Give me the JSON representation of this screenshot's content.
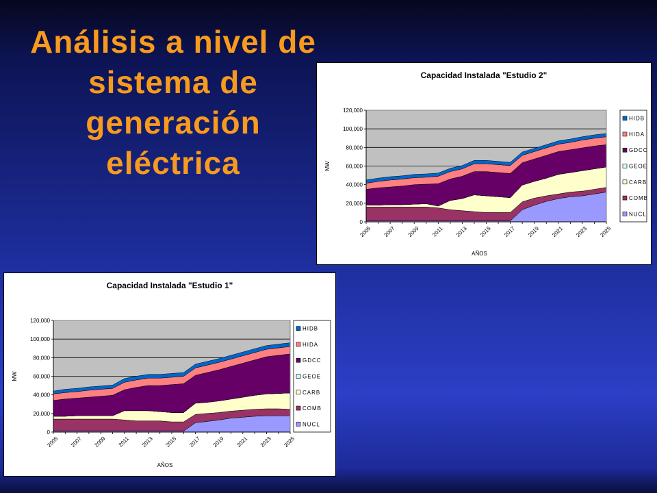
{
  "slide": {
    "title_lines": [
      "Análisis a nivel de",
      "sistema de",
      "generación",
      "eléctrica"
    ]
  },
  "colors": {
    "NUCL": "#9999ff",
    "COMB": "#993366",
    "CARB": "#ffffcc",
    "GEOE": "#ccffff",
    "GDCC": "#660066",
    "HIDA": "#ff8080",
    "HIDB": "#0066cc",
    "plot_bg": "#c0c0c0"
  },
  "chart_data": [
    {
      "id": "estudio2",
      "type": "area",
      "stacked": true,
      "title": "Capacidad Instalada \"Estudio 2\"",
      "xlabel": "AÑOS",
      "ylabel": "MW",
      "ylim": [
        0,
        120000
      ],
      "yticks": [
        "0",
        "20,000",
        "40,000",
        "60,000",
        "80,000",
        "100,000",
        "120,000"
      ],
      "xtick_labels": [
        "2005",
        "2007",
        "2009",
        "2011",
        "2013",
        "2015",
        "2017",
        "2019",
        "2021",
        "2023",
        "2025"
      ],
      "x": [
        2005,
        2006,
        2007,
        2008,
        2009,
        2010,
        2011,
        2012,
        2013,
        2014,
        2015,
        2016,
        2017,
        2018,
        2019,
        2020,
        2021,
        2022,
        2023,
        2024,
        2025
      ],
      "legend_position": "right",
      "legend": [
        "HIDB",
        "HIDA",
        "GDCC",
        "GEOE",
        "CARB",
        "COMB",
        "NUCL"
      ],
      "grid": true,
      "series": [
        {
          "name": "NUCL",
          "values": [
            1000,
            1000,
            1000,
            1000,
            1000,
            1000,
            1000,
            1000,
            1000,
            1000,
            1000,
            1000,
            1000,
            13000,
            18000,
            22000,
            25000,
            27000,
            28000,
            30000,
            32000
          ]
        },
        {
          "name": "COMB",
          "values": [
            15000,
            15000,
            15000,
            15000,
            15000,
            15000,
            14000,
            12000,
            11000,
            10000,
            9000,
            9000,
            9000,
            8500,
            7500,
            6000,
            5000,
            5000,
            5000,
            5000,
            5000
          ]
        },
        {
          "name": "CARB",
          "values": [
            2000,
            2000,
            2500,
            2500,
            3000,
            3500,
            2000,
            10000,
            13000,
            18000,
            18000,
            17000,
            16000,
            18000,
            18000,
            19000,
            21000,
            21000,
            22000,
            22000,
            22000
          ]
        },
        {
          "name": "GEOE",
          "values": [
            0,
            0,
            0,
            0,
            0,
            0,
            0,
            0,
            0,
            0,
            0,
            0,
            0,
            0,
            0,
            0,
            0,
            0,
            0,
            0,
            0
          ]
        },
        {
          "name": "GDCC",
          "values": [
            17000,
            18500,
            19000,
            20000,
            21000,
            21000,
            24000,
            23000,
            24000,
            25000,
            26000,
            26000,
            26000,
            24000,
            24000,
            24500,
            24500,
            24500,
            24500,
            24500,
            24000
          ]
        },
        {
          "name": "HIDA",
          "values": [
            6500,
            7000,
            7500,
            7500,
            7500,
            7500,
            8000,
            8000,
            8000,
            8500,
            8500,
            8500,
            8500,
            8000,
            8000,
            8000,
            8000,
            8000,
            8500,
            8500,
            8500
          ]
        },
        {
          "name": "HIDB",
          "values": [
            3500,
            3500,
            3500,
            3500,
            3500,
            3500,
            3500,
            3500,
            3500,
            3500,
            3500,
            3500,
            3500,
            3500,
            3500,
            3500,
            3500,
            3500,
            3500,
            3500,
            3500
          ]
        }
      ]
    },
    {
      "id": "estudio1",
      "type": "area",
      "stacked": true,
      "title": "Capacidad Instalada \"Estudio 1\"",
      "xlabel": "AÑOS",
      "ylabel": "MW",
      "ylim": [
        0,
        120000
      ],
      "yticks": [
        "0",
        "20,000",
        "40,000",
        "60,000",
        "80,000",
        "100,000",
        "120,000"
      ],
      "xtick_labels": [
        "2005",
        "2007",
        "2009",
        "2011",
        "2013",
        "2015",
        "2017",
        "2019",
        "2021",
        "2023",
        "2025"
      ],
      "x": [
        2005,
        2006,
        2007,
        2008,
        2009,
        2010,
        2011,
        2012,
        2013,
        2014,
        2015,
        2016,
        2017,
        2018,
        2019,
        2020,
        2021,
        2022,
        2023,
        2024,
        2025
      ],
      "legend_position": "right",
      "legend": [
        "HIDB",
        "HIDA",
        "GDCC",
        "GEOE",
        "CARB",
        "COMB",
        "NUCL"
      ],
      "grid": true,
      "series": [
        {
          "name": "NUCL",
          "values": [
            1000,
            1000,
            1000,
            1000,
            1000,
            1000,
            1000,
            1000,
            1000,
            1000,
            1000,
            1000,
            10000,
            11500,
            13000,
            15000,
            16000,
            17000,
            17500,
            17500,
            17500
          ]
        },
        {
          "name": "COMB",
          "values": [
            13000,
            13000,
            13000,
            13000,
            13000,
            13000,
            12000,
            11000,
            11000,
            11000,
            10000,
            10000,
            9000,
            8500,
            8000,
            7500,
            7500,
            7500,
            7500,
            7500,
            7000
          ]
        },
        {
          "name": "CARB",
          "values": [
            3000,
            3000,
            3500,
            3500,
            3500,
            3500,
            10000,
            11000,
            11000,
            10000,
            10000,
            10000,
            12000,
            12000,
            12500,
            13000,
            14000,
            15000,
            16000,
            16500,
            17500
          ]
        },
        {
          "name": "GEOE",
          "values": [
            0,
            0,
            0,
            0,
            0,
            0,
            0,
            0,
            0,
            0,
            0,
            0,
            0,
            0,
            0,
            0,
            0,
            0,
            0,
            0,
            0
          ]
        },
        {
          "name": "GDCC",
          "values": [
            17000,
            18500,
            19000,
            20000,
            21000,
            22000,
            22500,
            25000,
            27000,
            28000,
            30000,
            31000,
            30000,
            32000,
            33500,
            35000,
            36500,
            38000,
            40000,
            41000,
            42000
          ]
        },
        {
          "name": "HIDA",
          "values": [
            7000,
            7000,
            7000,
            7500,
            7500,
            7500,
            8000,
            8000,
            8000,
            8000,
            8000,
            8000,
            8000,
            8000,
            8000,
            8000,
            8000,
            8000,
            8000,
            8000,
            8000
          ]
        },
        {
          "name": "HIDB",
          "values": [
            3000,
            3500,
            3500,
            3500,
            3500,
            3500,
            4000,
            4000,
            4000,
            4000,
            4000,
            4000,
            4000,
            4000,
            4000,
            4000,
            4000,
            4000,
            4000,
            4000,
            4000
          ]
        }
      ]
    }
  ]
}
